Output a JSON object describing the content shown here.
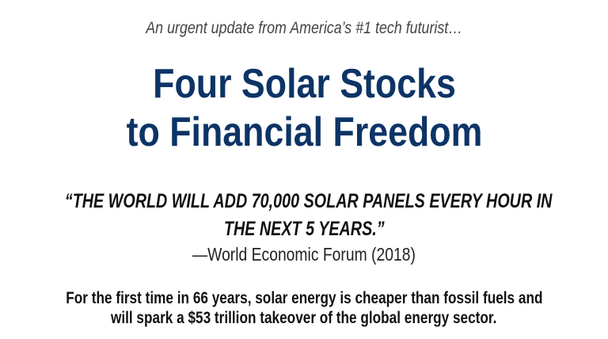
{
  "kicker": "An urgent update from America’s #1 tech futurist…",
  "headline": {
    "line1": "Four Solar Stocks",
    "line2": "to Financial Freedom"
  },
  "quote": {
    "line1": "“THE WORLD WILL ADD 70,000 SOLAR PANELS EVERY HOUR IN",
    "line2": "THE NEXT 5 YEARS.”",
    "attribution": "—World Economic Forum (2018)"
  },
  "body": {
    "line1": "For the first time in 66 years, solar energy is cheaper than fossil fuels and",
    "line2": "will spark a $53 trillion takeover of the global energy sector."
  },
  "colors": {
    "headline": "#0d3466",
    "text": "#111111"
  }
}
